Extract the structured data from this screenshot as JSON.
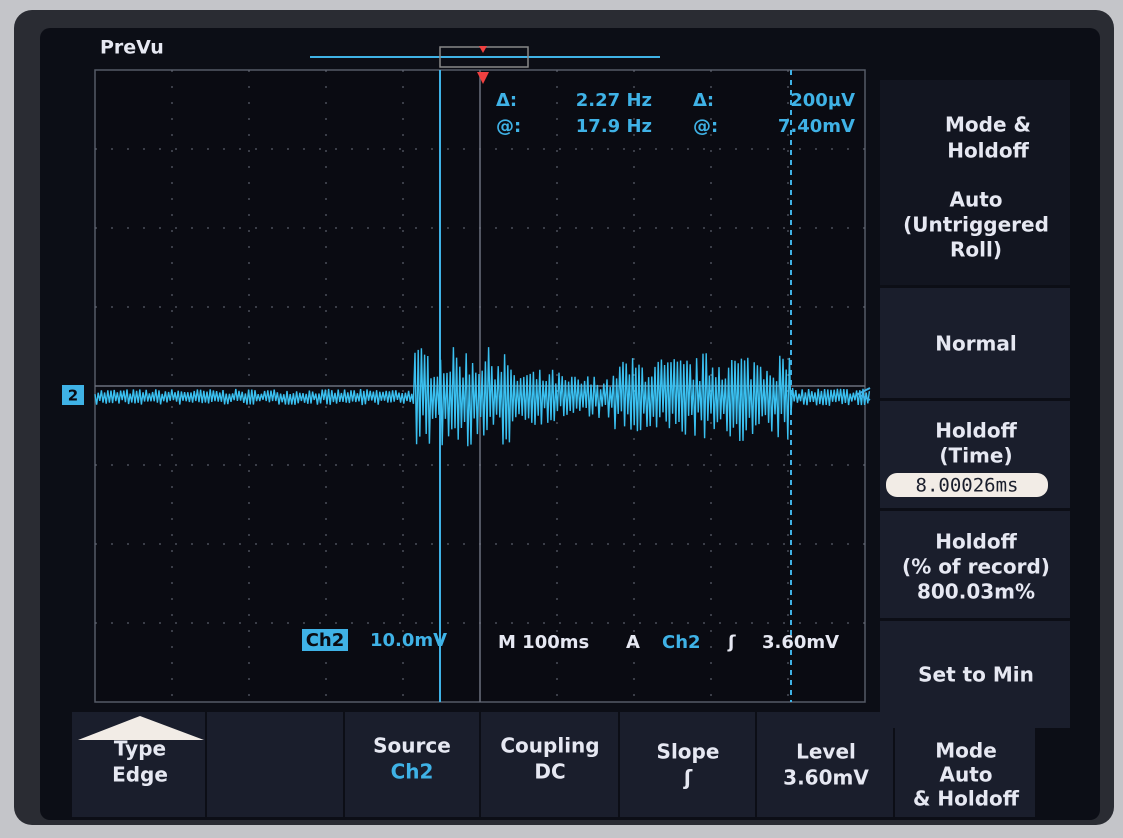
{
  "screen": {
    "mode": "PreVu",
    "channel_marker": "2"
  },
  "cursors": {
    "delta_label_1": "Δ:",
    "delta_freq": "2.27 Hz",
    "at_label_1": "@:",
    "at_freq": "17.9 Hz",
    "delta_label_2": "Δ:",
    "delta_volt": "200µV",
    "at_label_2": "@:",
    "at_volt": "7.40mV"
  },
  "status": {
    "channel": "Ch2",
    "scale": "10.0mV",
    "timebase": "M 100ms",
    "trigger_mode": "A",
    "trigger_source": "Ch2",
    "trigger_slope": "ʃ",
    "trigger_level": "3.60mV"
  },
  "side_menu": {
    "title": [
      "Mode &",
      "Holdoff"
    ],
    "items": [
      {
        "lines": [
          "Auto",
          "(Untriggered",
          "Roll)"
        ]
      },
      {
        "lines": [
          "Normal"
        ]
      },
      {
        "lines": [
          "Holdoff",
          "(Time)"
        ],
        "value": "8.00026ms"
      },
      {
        "lines": [
          "Holdoff",
          "(% of record)",
          "800.03m%"
        ]
      },
      {
        "lines": [
          "Set to Min"
        ]
      }
    ]
  },
  "bottom_menu": [
    {
      "lines": [
        "Type",
        "Edge"
      ]
    },
    {
      "lines": [
        "Source",
        "Ch2"
      ]
    },
    {
      "lines": [
        "Coupling",
        "DC"
      ]
    },
    {
      "lines": [
        "Slope",
        "ʃ"
      ]
    },
    {
      "lines": [
        "Level",
        "3.60mV"
      ]
    },
    {
      "lines": [
        "Mode",
        "Auto",
        "& Holdoff"
      ]
    }
  ]
}
